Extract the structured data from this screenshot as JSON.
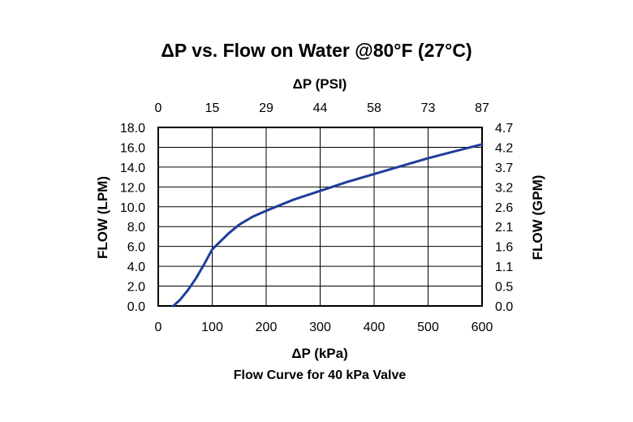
{
  "chart_data": {
    "type": "line",
    "title": "ΔP vs. Flow on Water @80°F (27°C)",
    "subtitle": "Flow Curve for 40 kPa Valve",
    "xlabel": "ΔP (kPa)",
    "x2label": "ΔP (PSI)",
    "ylabel": "FLOW (LPM)",
    "y2label": "FLOW (GPM)",
    "xlim": [
      0,
      600
    ],
    "ylim": [
      0,
      18
    ],
    "x_ticks": [
      "0",
      "100",
      "200",
      "300",
      "400",
      "500",
      "600"
    ],
    "x2_ticks": [
      "0",
      "15",
      "29",
      "44",
      "58",
      "73",
      "87"
    ],
    "y_ticks": [
      "0.0",
      "2.0",
      "4.0",
      "6.0",
      "8.0",
      "10.0",
      "12.0",
      "14.0",
      "16.0",
      "18.0"
    ],
    "y2_ticks": [
      "0.0",
      "0.5",
      "1.1",
      "1.6",
      "2.1",
      "2.6",
      "3.2",
      "3.7",
      "4.2",
      "4.7"
    ],
    "grid": true,
    "line_color": "#1f3d99",
    "series": [
      {
        "x": [
          28,
          40,
          55,
          70,
          85,
          100,
          115,
          130,
          150,
          175,
          200,
          250,
          300,
          350,
          400,
          450,
          500,
          550,
          600
        ],
        "values": [
          0.0,
          0.6,
          1.6,
          2.8,
          4.2,
          5.7,
          6.5,
          7.3,
          8.2,
          9.0,
          9.6,
          10.7,
          11.6,
          12.5,
          13.3,
          14.1,
          14.9,
          15.6,
          16.3
        ]
      }
    ]
  }
}
